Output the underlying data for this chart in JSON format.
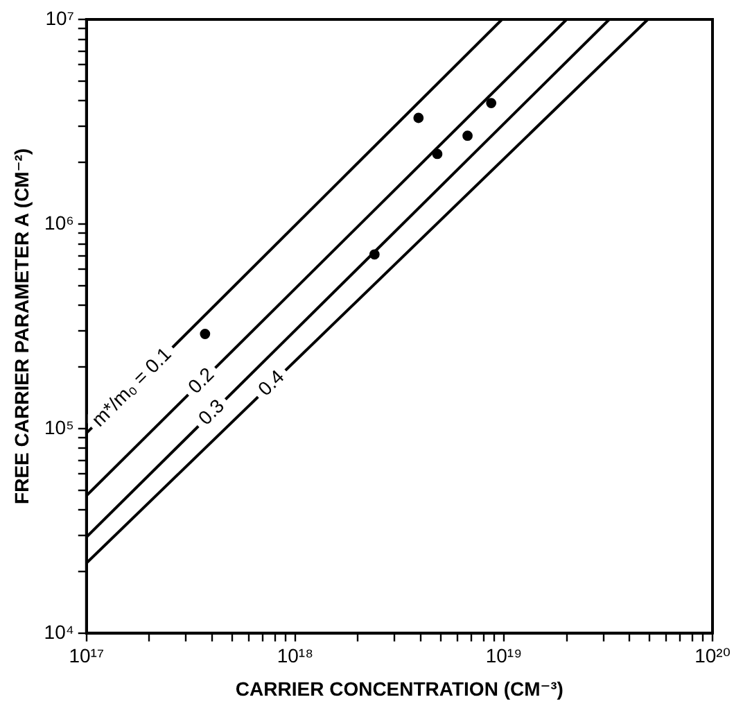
{
  "chart_data": {
    "type": "scatter",
    "xlabel": "CARRIER CONCENTRATION (CM⁻³)",
    "ylabel": "FREE CARRIER PARAMETER A (CM⁻²)",
    "log": "xy",
    "grid": false,
    "legend": false,
    "xlim": [
      1e+17,
      1e+20
    ],
    "ylim": [
      10000.0,
      10000000.0
    ],
    "xticks": [
      {
        "value": 1e+17,
        "label": "10¹⁷"
      },
      {
        "value": 2e+17,
        "label": null
      },
      {
        "value": 3e+17,
        "label": null
      },
      {
        "value": 4e+17,
        "label": null
      },
      {
        "value": 5e+17,
        "label": null
      },
      {
        "value": 6e+17,
        "label": null
      },
      {
        "value": 7e+17,
        "label": null
      },
      {
        "value": 8e+17,
        "label": null
      },
      {
        "value": 9e+17,
        "label": null
      },
      {
        "value": 1e+18,
        "label": "10¹⁸"
      },
      {
        "value": 2e+18,
        "label": null
      },
      {
        "value": 3e+18,
        "label": null
      },
      {
        "value": 4e+18,
        "label": null
      },
      {
        "value": 5e+18,
        "label": null
      },
      {
        "value": 6e+18,
        "label": null
      },
      {
        "value": 7e+18,
        "label": null
      },
      {
        "value": 8e+18,
        "label": null
      },
      {
        "value": 9e+18,
        "label": null
      },
      {
        "value": 1e+19,
        "label": "10¹⁹"
      },
      {
        "value": 2e+19,
        "label": null
      },
      {
        "value": 3e+19,
        "label": null
      },
      {
        "value": 4e+19,
        "label": null
      },
      {
        "value": 5e+19,
        "label": null
      },
      {
        "value": 6e+19,
        "label": null
      },
      {
        "value": 7e+19,
        "label": null
      },
      {
        "value": 8e+19,
        "label": null
      },
      {
        "value": 9e+19,
        "label": null
      },
      {
        "value": 1e+20,
        "label": "10²⁰"
      }
    ],
    "yticks": [
      {
        "value": 10000.0,
        "label": "10⁴"
      },
      {
        "value": 20000.0,
        "label": null
      },
      {
        "value": 30000.0,
        "label": null
      },
      {
        "value": 40000.0,
        "label": null
      },
      {
        "value": 50000.0,
        "label": null
      },
      {
        "value": 60000.0,
        "label": null
      },
      {
        "value": 70000.0,
        "label": null
      },
      {
        "value": 80000.0,
        "label": null
      },
      {
        "value": 90000.0,
        "label": null
      },
      {
        "value": 100000.0,
        "label": "10⁵"
      },
      {
        "value": 200000.0,
        "label": null
      },
      {
        "value": 300000.0,
        "label": null
      },
      {
        "value": 400000.0,
        "label": null
      },
      {
        "value": 500000.0,
        "label": null
      },
      {
        "value": 600000.0,
        "label": null
      },
      {
        "value": 700000.0,
        "label": null
      },
      {
        "value": 800000.0,
        "label": null
      },
      {
        "value": 900000.0,
        "label": null
      },
      {
        "value": 1000000.0,
        "label": "10⁶"
      },
      {
        "value": 2000000.0,
        "label": null
      },
      {
        "value": 3000000.0,
        "label": null
      },
      {
        "value": 4000000.0,
        "label": null
      },
      {
        "value": 5000000.0,
        "label": null
      },
      {
        "value": 6000000.0,
        "label": null
      },
      {
        "value": 7000000.0,
        "label": null
      },
      {
        "value": 8000000.0,
        "label": null
      },
      {
        "value": 9000000.0,
        "label": null
      },
      {
        "value": 10000000.0,
        "label": "10⁷"
      }
    ],
    "series": [
      {
        "type": "line",
        "name": "m*/m₀ = 0.1",
        "color": "#000000",
        "marker": "none",
        "line_style": "solid",
        "x": [
          1e+17,
          9.8e+18
        ],
        "values": [
          95000.0,
          10000000.0
        ]
      },
      {
        "type": "line",
        "name": "0.2",
        "color": "#000000",
        "marker": "none",
        "line_style": "solid",
        "x": [
          1e+17,
          2e+19
        ],
        "values": [
          47000.0,
          10000000.0
        ]
      },
      {
        "type": "line",
        "name": "0.3",
        "color": "#000000",
        "marker": "none",
        "line_style": "solid",
        "x": [
          1e+17,
          3.2e+19
        ],
        "values": [
          29500.0,
          10000000.0
        ]
      },
      {
        "type": "line",
        "name": "0.4",
        "color": "#000000",
        "marker": "none",
        "line_style": "solid",
        "x": [
          1e+17,
          4.9e+19
        ],
        "values": [
          22000.0,
          10000000.0
        ]
      },
      {
        "color": "#000000",
        "marker": "circle",
        "x": [
          3.7e+17,
          2.4e+18,
          3.9e+18,
          4.8e+18,
          6.7e+18,
          8.7e+18
        ],
        "values": [
          290000.0,
          710000.0,
          3300000.0,
          2200000.0,
          2700000.0,
          3900000.0
        ]
      }
    ]
  }
}
